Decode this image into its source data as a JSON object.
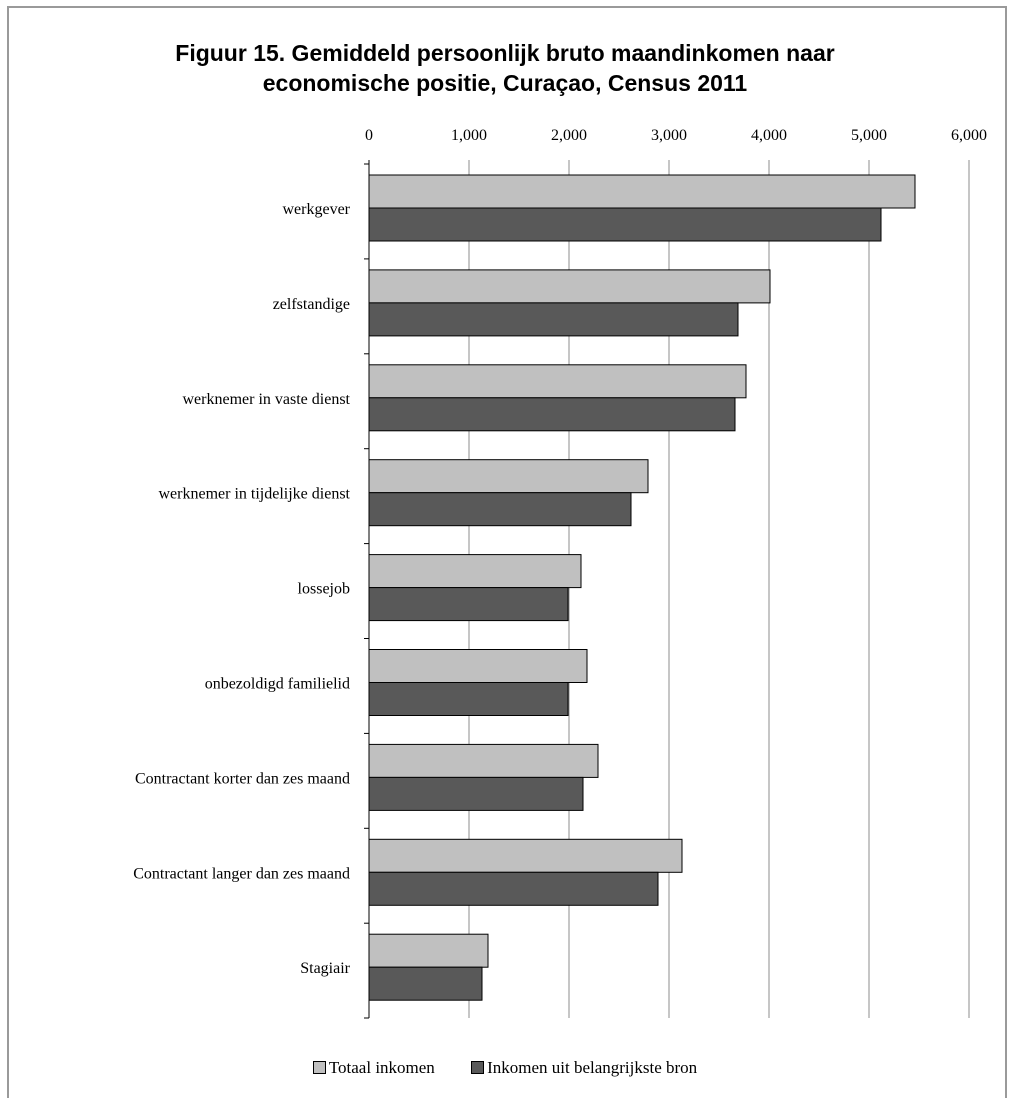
{
  "chart_data": {
    "type": "bar",
    "orientation": "horizontal",
    "title": "Figuur 15. Gemiddeld persoonlijk bruto maandinkomen naar\neconomische positie, Curaçao, Census 2011",
    "categories": [
      "werkgever",
      "zelfstandige",
      "werknemer in vaste dienst",
      "werknemer in tijdelijke dienst",
      "lossejob",
      "onbezoldigd familielid",
      "Contractant korter dan zes maand",
      "Contractant langer dan zes maand",
      "Stagiair"
    ],
    "series": [
      {
        "name": "Totaal inkomen",
        "color": "#c0c0c0",
        "values": [
          5460,
          4010,
          3770,
          2790,
          2120,
          2180,
          2290,
          3130,
          1190
        ]
      },
      {
        "name": "Inkomen uit belangrijkste bron",
        "color": "#595959",
        "values": [
          5120,
          3690,
          3660,
          2620,
          1990,
          1990,
          2140,
          2890,
          1130
        ]
      }
    ],
    "xlim": [
      0,
      6000
    ],
    "xticks": [
      "0",
      "1,000",
      "2,000",
      "3,000",
      "4,000",
      "5,000",
      "6,000"
    ],
    "x_axis_position": "top",
    "grid": "vertical",
    "legend_position": "bottom"
  }
}
